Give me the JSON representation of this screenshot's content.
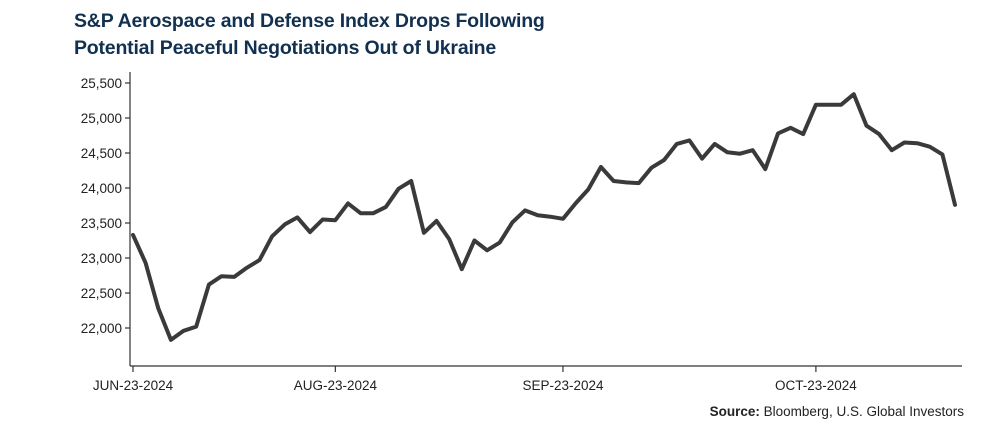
{
  "chart_data": {
    "type": "line",
    "title_lines": [
      "S&P Aerospace and Defense Index Drops Following",
      "Potential Peaceful Negotiations Out of Ukraine"
    ],
    "source_label": "Source:",
    "source_text": "Bloomberg, U.S. Global Investors",
    "xlabel": "",
    "ylabel": "",
    "x_tick_labels": [
      "JUN-23-2024",
      "AUG-23-2024",
      "SEP-23-2024",
      "OCT-23-2024"
    ],
    "x_tick_indices": [
      0,
      16,
      34,
      54
    ],
    "y_ticks": [
      22000,
      22500,
      23000,
      23500,
      24000,
      24500,
      25000,
      25500
    ],
    "y_tick_labels": [
      "22,000",
      "22,500",
      "23,000",
      "23,500",
      "24,000",
      "24,500",
      "25,000",
      "25,500"
    ],
    "ylim": [
      21500,
      25650
    ],
    "grid": false,
    "line_color": "#3a3a3a",
    "series": [
      {
        "values": [
          23330,
          22930,
          22280,
          21830,
          21960,
          22020,
          22620,
          22740,
          22730,
          22860,
          22970,
          23310,
          23480,
          23580,
          23370,
          23550,
          23540,
          23780,
          23640,
          23640,
          23730,
          23990,
          24100,
          23360,
          23530,
          23270,
          22840,
          23250,
          23110,
          23220,
          23510,
          23680,
          23610,
          23590,
          23560,
          23780,
          23980,
          24300,
          24100,
          24080,
          24070,
          24290,
          24400,
          24630,
          24680,
          24420,
          24630,
          24510,
          24490,
          24540,
          24270,
          24780,
          24860,
          24770,
          25190,
          25190,
          25190,
          25340,
          24890,
          24770,
          24540,
          24650,
          24640,
          24590,
          24480,
          23760
        ]
      }
    ]
  }
}
